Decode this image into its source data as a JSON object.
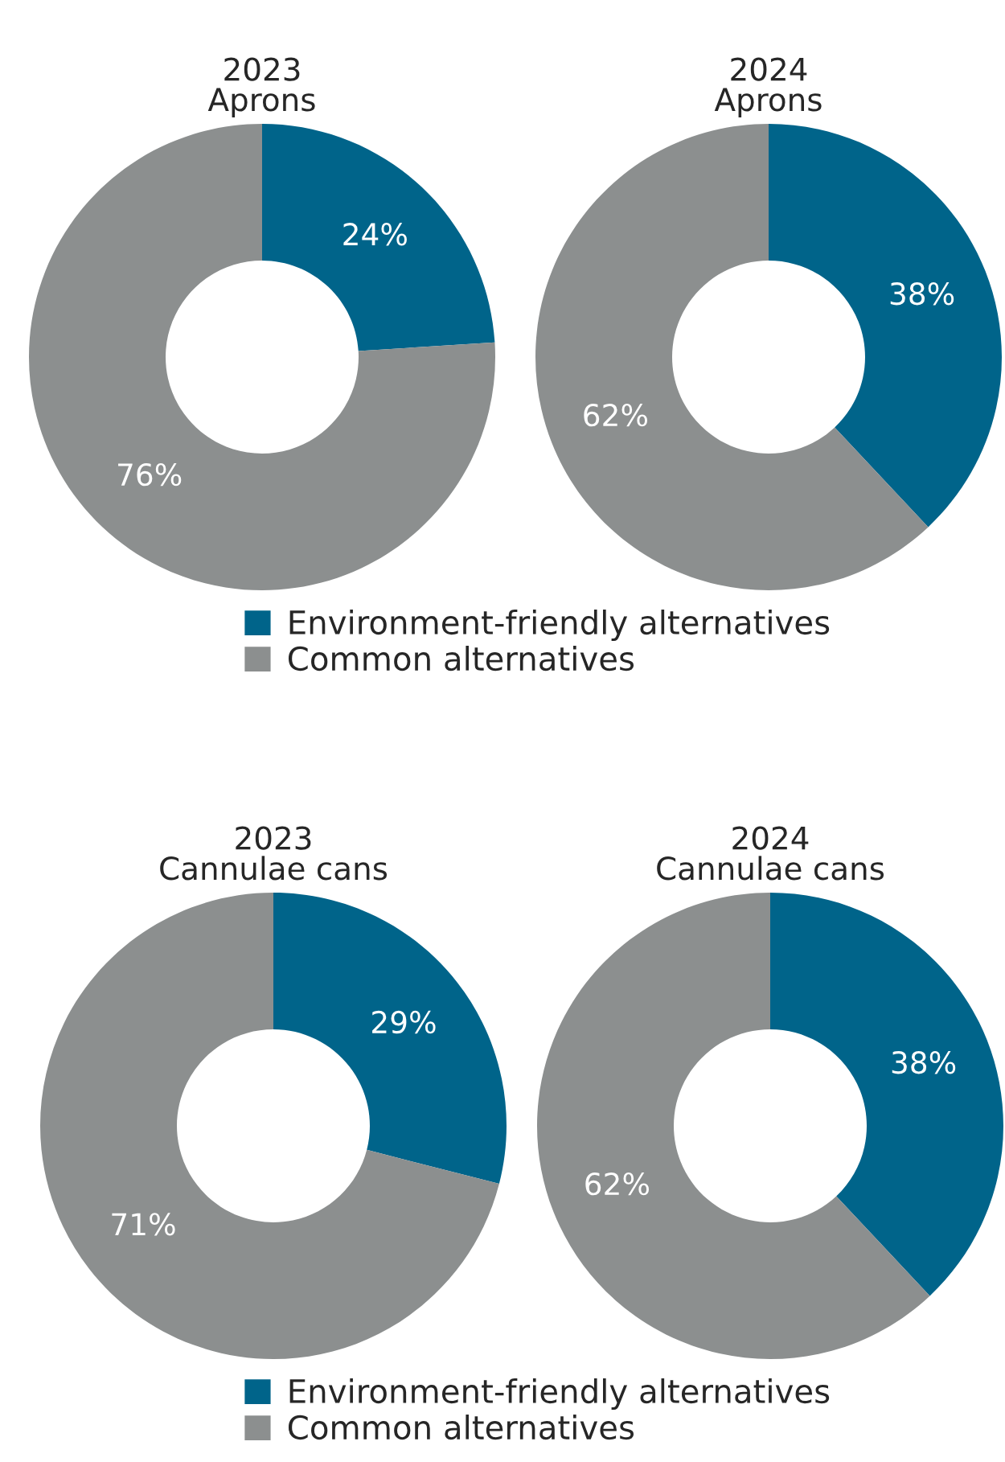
{
  "chart_data": [
    {
      "type": "donut",
      "title": "2023\nAprons",
      "categories": [
        "Environment-friendly alternatives",
        "Common alternatives"
      ],
      "values": [
        24,
        76
      ],
      "colors": [
        "#00648a",
        "#8c8f8f"
      ],
      "value_labels": [
        "24%",
        "76%"
      ],
      "legend": "bottom"
    },
    {
      "type": "donut",
      "title": "2024\nAprons",
      "categories": [
        null,
        null
      ],
      "values": [
        38,
        62
      ],
      "colors": [
        "#00648a",
        "#8c8f8f"
      ],
      "value_labels": [
        "38%",
        "62%"
      ]
    },
    {
      "type": "donut",
      "title": "2023\nCannulae cans",
      "categories": [
        "Environment-friendly alternatives",
        "Common alternatives"
      ],
      "values": [
        29,
        71
      ],
      "colors": [
        "#00648a",
        "#8c8f8f"
      ],
      "value_labels": [
        "29%",
        "71%"
      ],
      "legend": "bottom"
    },
    {
      "type": "donut",
      "title": "2024\nCannulae cans",
      "categories": [
        null,
        null
      ],
      "values": [
        38,
        62
      ],
      "colors": [
        "#00648a",
        "#8c8f8f"
      ],
      "value_labels": [
        "38%",
        "62%"
      ]
    }
  ]
}
